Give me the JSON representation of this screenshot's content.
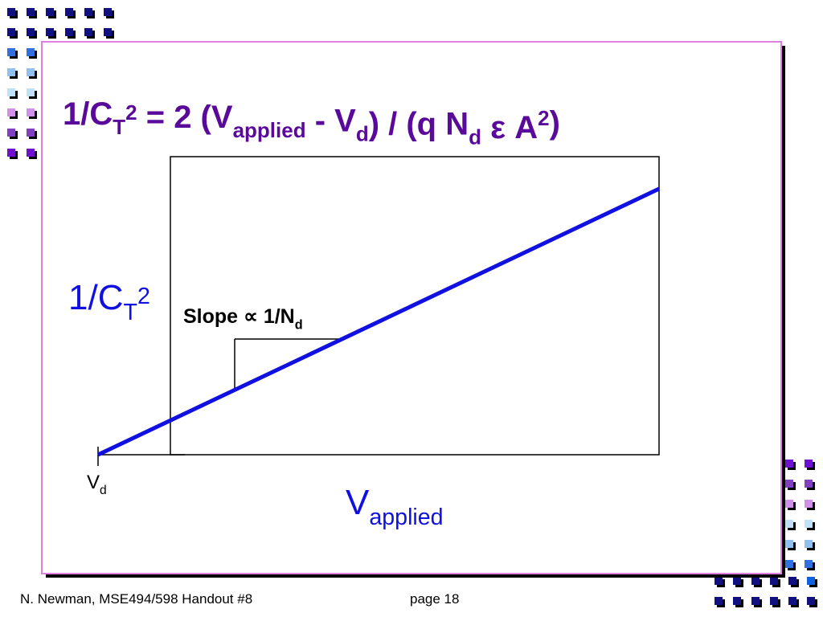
{
  "title": {
    "segments": [
      {
        "text": "1/C",
        "pos": "base"
      },
      {
        "text": "T",
        "pos": "sub"
      },
      {
        "text": "2",
        "pos": "sup"
      },
      {
        "text": " = 2 (V",
        "pos": "base"
      },
      {
        "text": "applied",
        "pos": "sub"
      },
      {
        "text": " - V",
        "pos": "base"
      },
      {
        "text": "d",
        "pos": "sub"
      },
      {
        "text": ") / (q N",
        "pos": "base"
      },
      {
        "text": "d",
        "pos": "sub"
      },
      {
        "text": " ε A",
        "pos": "base"
      },
      {
        "text": "2",
        "pos": "sup"
      },
      {
        "text": ")",
        "pos": "base"
      }
    ]
  },
  "y_label": {
    "segments": [
      {
        "text": "1/C",
        "pos": "base"
      },
      {
        "text": "T",
        "pos": "sub"
      },
      {
        "text": "2",
        "pos": "sup"
      }
    ]
  },
  "slope_label": {
    "segments": [
      {
        "text": "Slope ∝ 1/N",
        "pos": "base"
      },
      {
        "text": "d",
        "pos": "sub"
      }
    ]
  },
  "x_label": {
    "segments": [
      {
        "text": "V",
        "pos": "base"
      },
      {
        "text": "applied",
        "pos": "sub"
      }
    ]
  },
  "intercept_label": {
    "segments": [
      {
        "text": "V",
        "pos": "base"
      },
      {
        "text": "d",
        "pos": "sub"
      }
    ]
  },
  "footer": {
    "left": "N. Newman, MSE494/598 Handout #8",
    "right": "page 18"
  }
}
